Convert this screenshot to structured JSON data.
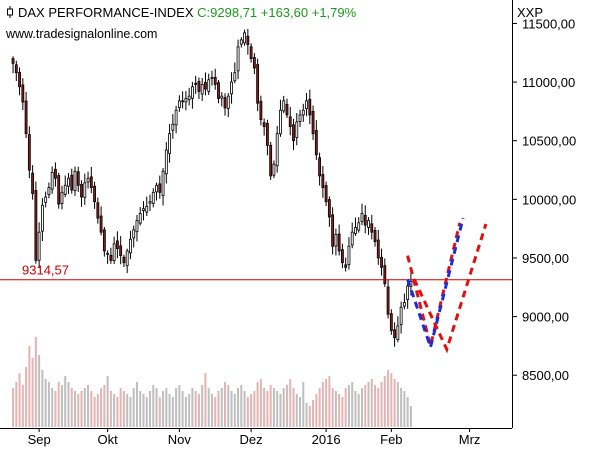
{
  "header": {
    "title": "DAX PERFORMANCE-INDEX",
    "quote": "C:9298,71 +163,60 +1,79%",
    "source": "www.tradesignalonline.com",
    "symbol": "XXP"
  },
  "colors": {
    "up": "#ffffff",
    "down": "#8b1a1a",
    "wick": "#000000",
    "support": "#cc0000",
    "vol_up": "#bfbfbf",
    "vol_down": "#e3b4b4",
    "proj_red": "#e01010",
    "proj_blue": "#1a2ee0",
    "quote": "#1a9a1a"
  },
  "chart_data": {
    "type": "candlestick",
    "y_axis": {
      "ticks": [
        "11500,00",
        "11000,00",
        "10500,00",
        "10000,00",
        "9500,00",
        "9000,00",
        "8500,00"
      ],
      "tick_values": [
        11500,
        11000,
        10500,
        10000,
        9500,
        9000,
        8500
      ],
      "range": [
        8050,
        11700
      ]
    },
    "x_axis": {
      "labels": [
        "Sep",
        "Okt",
        "Nov",
        "Dez",
        "2016",
        "Feb",
        "Mrz"
      ],
      "label_sessions": [
        8,
        29,
        51,
        73,
        96,
        116,
        140
      ],
      "session_range": [
        -4,
        153
      ]
    },
    "support_level": {
      "value": 9314.57,
      "label": "9314,57"
    },
    "close_series": [
      11160,
      11080,
      10960,
      10830,
      10560,
      10250,
      10050,
      9480,
      9720,
      9950,
      10020,
      10100,
      10230,
      10180,
      9960,
      10060,
      10120,
      10180,
      10080,
      10240,
      10120,
      10020,
      10140,
      10180,
      10100,
      9980,
      9840,
      9720,
      9560,
      9540,
      9480,
      9620,
      9580,
      9520,
      9460,
      9560,
      9660,
      9740,
      9820,
      9880,
      9920,
      9940,
      9980,
      10060,
      10120,
      10060,
      10240,
      10420,
      10560,
      10640,
      10760,
      10840,
      10840,
      10860,
      10880,
      10960,
      10980,
      10920,
      10980,
      10940,
      11020,
      11040,
      10980,
      10860,
      10880,
      10780,
      10880,
      11000,
      11080,
      11300,
      11360,
      11420,
      11320,
      11200,
      11120,
      10820,
      10680,
      10620,
      10460,
      10200,
      10300,
      10560,
      10760,
      10840,
      10720,
      10620,
      10500,
      10660,
      10720,
      10760,
      10840,
      10720,
      10560,
      10380,
      10200,
      10100,
      9980,
      9850,
      9600,
      9700,
      9560,
      9460,
      9420,
      9600,
      9720,
      9760,
      9800,
      9880,
      9780,
      9820,
      9720,
      9640,
      9500,
      9420,
      9280,
      9020,
      8880,
      8820,
      8920,
      9080,
      9120,
      9260,
      9300
    ],
    "volume_series": [
      26,
      30,
      36,
      28,
      40,
      54,
      46,
      60,
      48,
      38,
      32,
      30,
      26,
      24,
      30,
      28,
      34,
      30,
      26,
      24,
      22,
      24,
      26,
      28,
      24,
      20,
      22,
      26,
      28,
      34,
      24,
      22,
      20,
      26,
      24,
      22,
      20,
      26,
      30,
      24,
      22,
      20,
      24,
      28,
      26,
      20,
      24,
      26,
      22,
      20,
      26,
      28,
      24,
      20,
      22,
      26,
      24,
      22,
      28,
      36,
      26,
      22,
      20,
      24,
      26,
      30,
      28,
      24,
      22,
      26,
      28,
      24,
      20,
      22,
      24,
      30,
      32,
      26,
      24,
      28,
      26,
      24,
      22,
      26,
      28,
      32,
      26,
      22,
      20,
      30,
      16,
      14,
      18,
      22,
      26,
      30,
      32,
      34,
      26,
      24,
      22,
      20,
      26,
      28,
      30,
      24,
      22,
      26,
      28,
      30,
      32,
      28,
      26,
      30,
      34,
      38,
      36,
      32,
      30,
      26,
      24,
      20,
      14
    ],
    "projections": [
      {
        "color": "red",
        "points": [
          [
            121,
            9520
          ],
          [
            128,
            8750
          ],
          [
            137,
            9800
          ]
        ]
      },
      {
        "color": "blue",
        "points": [
          [
            121,
            9320
          ],
          [
            128,
            8740
          ],
          [
            138,
            9840
          ]
        ]
      },
      {
        "color": "red",
        "points": [
          [
            123,
            9320
          ],
          [
            133,
            8720
          ],
          [
            145,
            9790
          ]
        ]
      }
    ]
  }
}
